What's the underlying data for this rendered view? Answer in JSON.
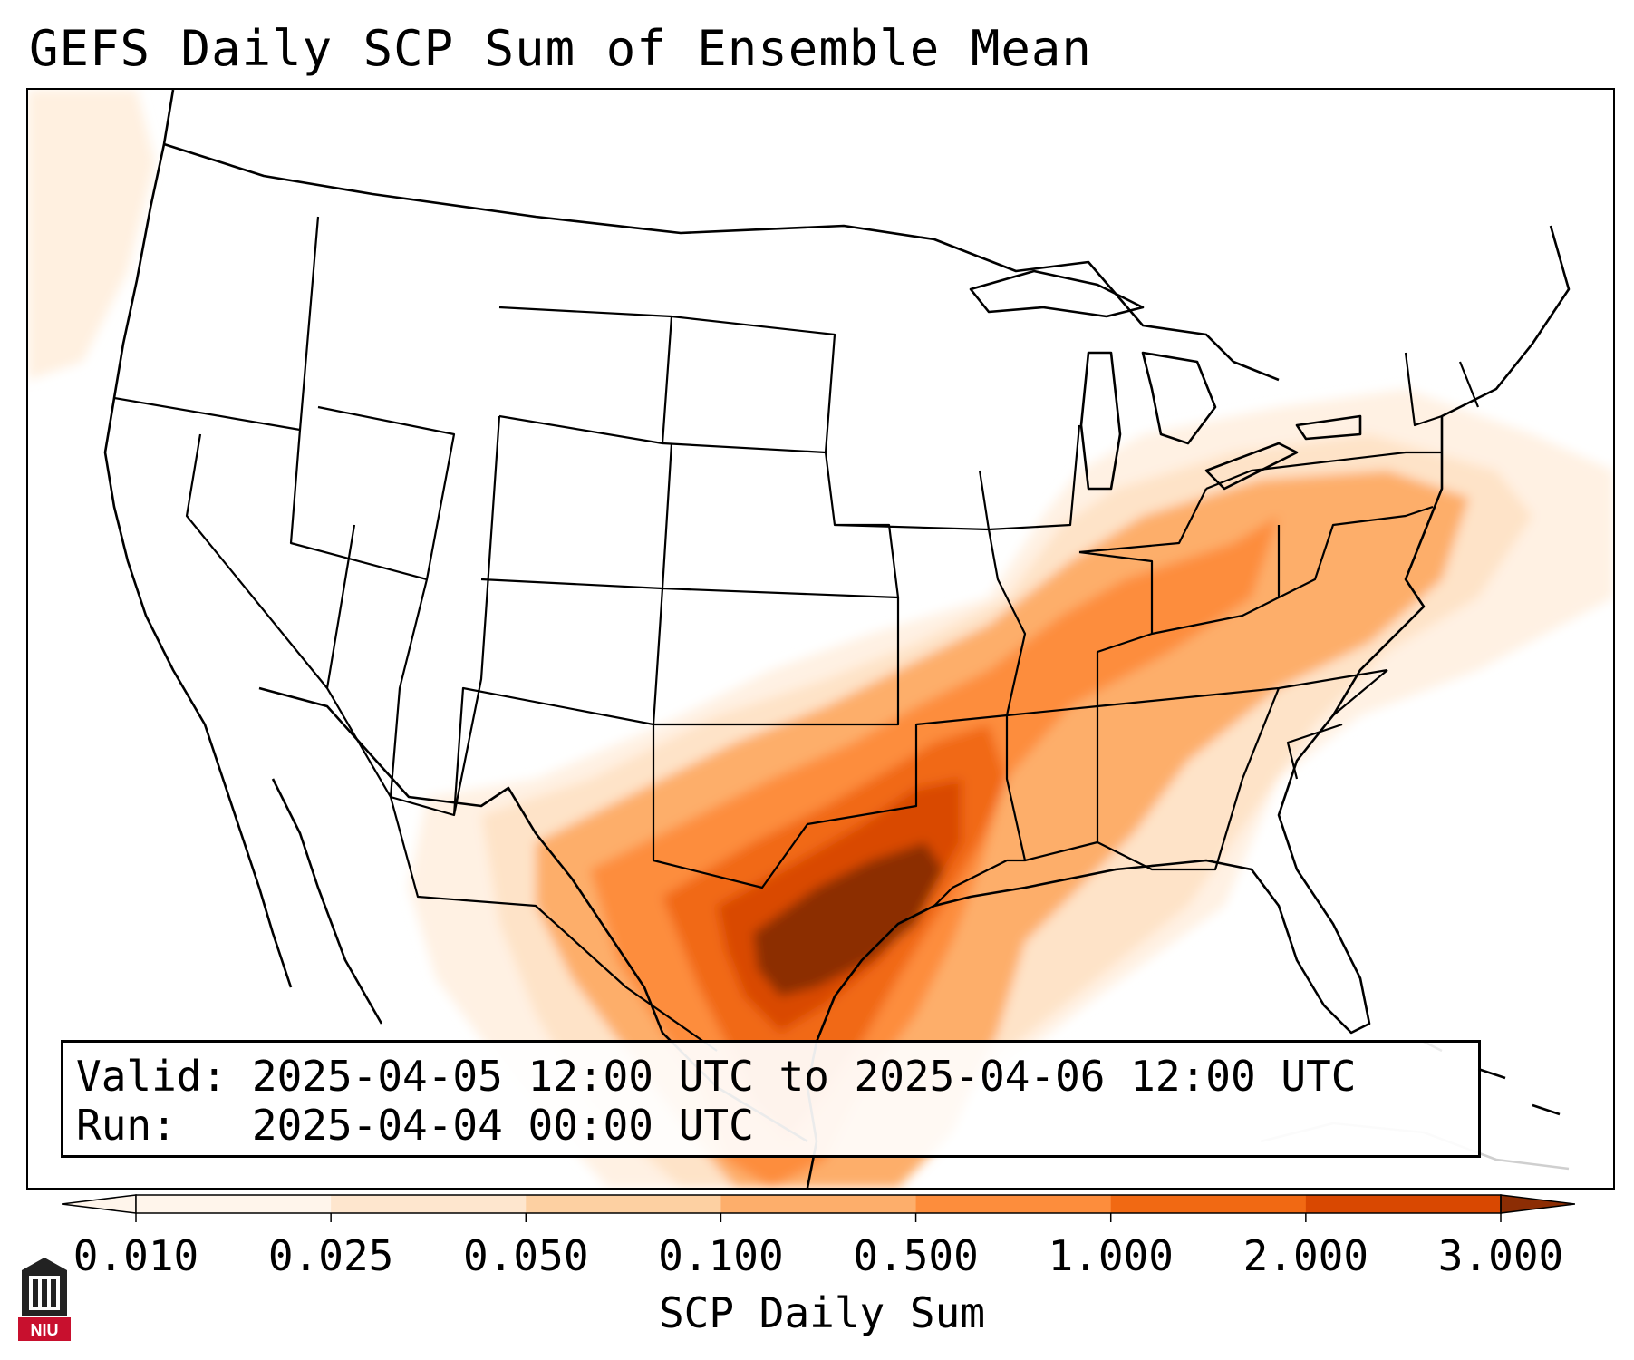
{
  "title": "GEFS Daily SCP Sum of Ensemble Mean",
  "info": {
    "valid_label": "Valid:",
    "valid_value": "2025-04-05 12:00 UTC to 2025-04-06 12:00 UTC",
    "run_label": "Run:",
    "run_value": "2025-04-04 00:00 UTC"
  },
  "colorbar": {
    "label": "SCP Daily Sum",
    "ticks": [
      "0.010",
      "0.025",
      "0.050",
      "0.100",
      "0.500",
      "1.000",
      "2.000",
      "3.000"
    ],
    "colors": [
      "#fff5eb",
      "#fee6ce",
      "#fdd0a2",
      "#fdae6b",
      "#fd8d3c",
      "#f16913",
      "#d94801",
      "#8c2d04"
    ],
    "extend": "both"
  },
  "logo": {
    "text": "NIU"
  },
  "map": {
    "region": "Contiguous United States",
    "field": "SCP Daily Sum",
    "max_region": "Northeast Texas / Arkansas"
  }
}
